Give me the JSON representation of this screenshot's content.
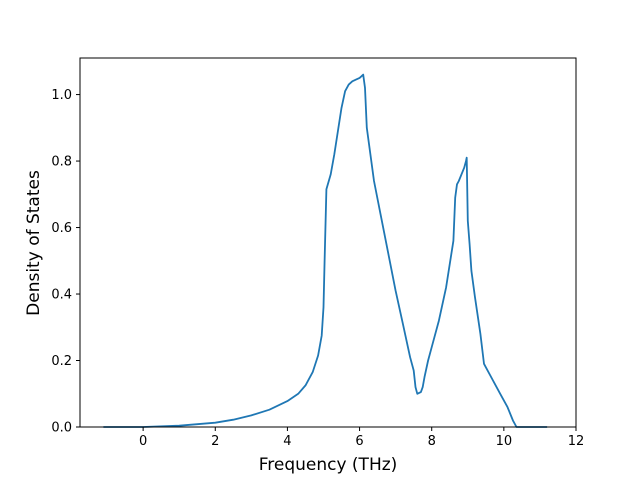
{
  "chart_data": {
    "type": "line",
    "title": "",
    "xlabel": "Frequency (THz)",
    "ylabel": "Density of States",
    "xlim": [
      -1.75,
      12.0
    ],
    "ylim": [
      0.0,
      1.11
    ],
    "grid": false,
    "legend": "none",
    "line_color": "#1f77b4",
    "x_ticks": [
      0,
      2,
      4,
      6,
      8,
      10,
      12
    ],
    "x_tick_labels": [
      "0",
      "2",
      "4",
      "6",
      "8",
      "10",
      "12"
    ],
    "y_ticks": [
      0.0,
      0.2,
      0.4,
      0.6,
      0.8,
      1.0
    ],
    "y_tick_labels": [
      "0.0",
      "0.2",
      "0.4",
      "0.6",
      "0.8",
      "1.0"
    ],
    "series": [
      {
        "x": [
          -1.1,
          0.0,
          1.0,
          2.0,
          2.5,
          3.0,
          3.5,
          4.0,
          4.3,
          4.5,
          4.7,
          4.85,
          4.95,
          5.0,
          5.03,
          5.08,
          5.2,
          5.3,
          5.4,
          5.5,
          5.6,
          5.7,
          5.8,
          5.9,
          6.0,
          6.05,
          6.1,
          6.15,
          6.2,
          6.3,
          6.4,
          6.6,
          6.8,
          7.0,
          7.2,
          7.4,
          7.5,
          7.55,
          7.6,
          7.7,
          7.75,
          7.8,
          7.9,
          8.0,
          8.2,
          8.4,
          8.6,
          8.65,
          8.7,
          8.75,
          8.9,
          8.95,
          8.97,
          9.0,
          9.05,
          9.1,
          9.2,
          9.35,
          9.45,
          9.5,
          9.7,
          9.9,
          10.1,
          10.25,
          10.35,
          10.38,
          10.5,
          11.2
        ],
        "y": [
          0.0,
          0.0,
          0.004,
          0.013,
          0.022,
          0.035,
          0.052,
          0.078,
          0.1,
          0.125,
          0.165,
          0.215,
          0.275,
          0.36,
          0.5,
          0.715,
          0.76,
          0.82,
          0.89,
          0.96,
          1.01,
          1.03,
          1.04,
          1.045,
          1.05,
          1.055,
          1.06,
          1.02,
          0.9,
          0.82,
          0.74,
          0.63,
          0.52,
          0.41,
          0.31,
          0.21,
          0.17,
          0.12,
          0.1,
          0.105,
          0.12,
          0.15,
          0.2,
          0.24,
          0.32,
          0.42,
          0.56,
          0.69,
          0.73,
          0.74,
          0.78,
          0.8,
          0.81,
          0.62,
          0.55,
          0.47,
          0.39,
          0.28,
          0.19,
          0.18,
          0.14,
          0.1,
          0.06,
          0.02,
          0.0,
          0.0,
          0.0,
          0.0
        ]
      }
    ]
  }
}
